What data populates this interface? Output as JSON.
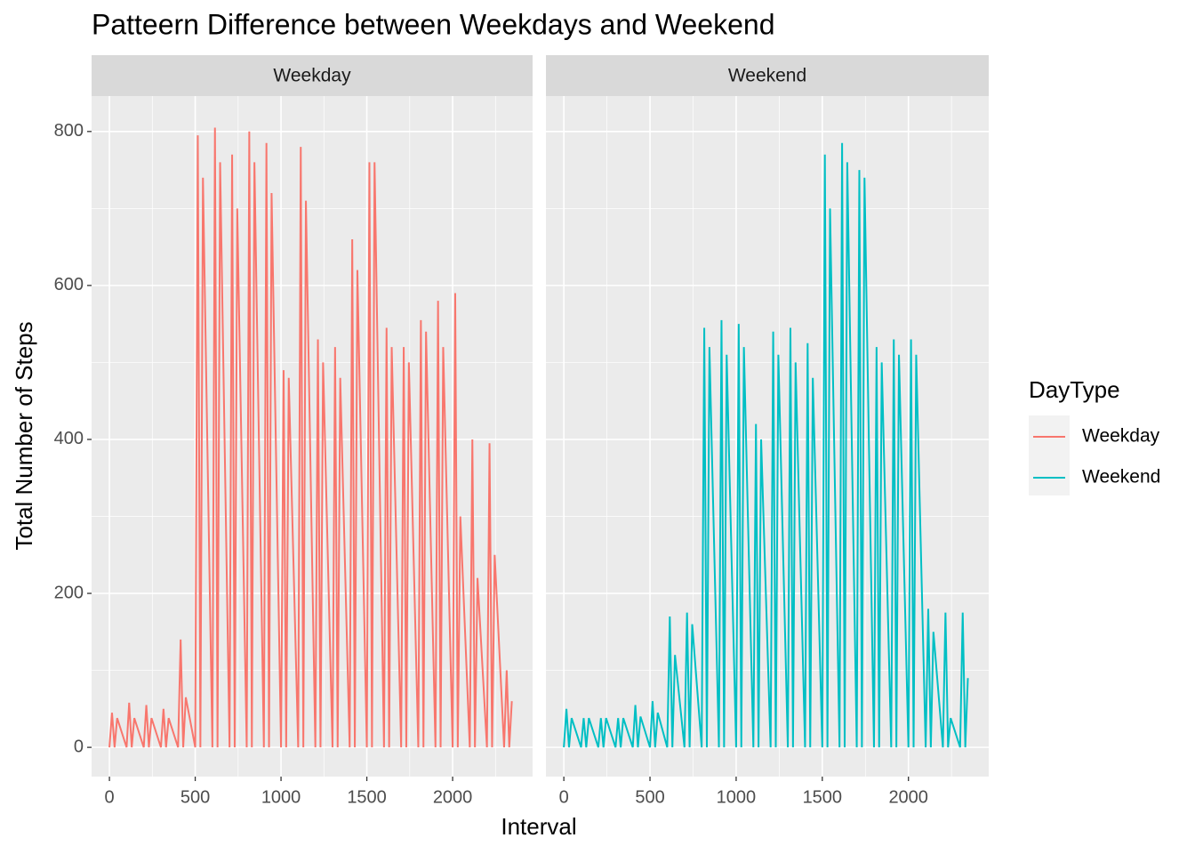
{
  "chart_data": {
    "type": "line",
    "title": "Patteern Difference between Weekdays and Weekend",
    "x_label": "Interval",
    "y_label": "Total Number of Steps",
    "legend_title": "DayType",
    "xlim": [
      -104,
      2466
    ],
    "ylim": [
      -38,
      846
    ],
    "xticks": [
      0,
      500,
      1000,
      1500,
      2000
    ],
    "yticks": [
      0,
      200,
      400,
      600,
      800
    ],
    "xminor": [
      250,
      750,
      1250,
      1750,
      2250
    ],
    "yminor": [
      100,
      300,
      500,
      700
    ],
    "grid": true,
    "legend": "right",
    "panels": [
      {
        "strip": "Weekday",
        "series": [
          {
            "name": "Weekday",
            "color": "#f8766d",
            "x": [
              0,
              15,
              30,
              45,
              100,
              115,
              130,
              145,
              200,
              215,
              230,
              245,
              300,
              315,
              330,
              345,
              400,
              415,
              430,
              445,
              500,
              515,
              530,
              545,
              600,
              615,
              630,
              645,
              700,
              715,
              730,
              745,
              800,
              815,
              830,
              845,
              900,
              915,
              930,
              945,
              1000,
              1015,
              1030,
              1045,
              1100,
              1115,
              1130,
              1145,
              1200,
              1215,
              1230,
              1245,
              1300,
              1315,
              1330,
              1345,
              1400,
              1415,
              1430,
              1445,
              1500,
              1515,
              1530,
              1545,
              1600,
              1615,
              1630,
              1645,
              1700,
              1715,
              1730,
              1745,
              1800,
              1815,
              1830,
              1845,
              1900,
              1915,
              1930,
              1945,
              2000,
              2015,
              2030,
              2045,
              2100,
              2115,
              2130,
              2145,
              2200,
              2215,
              2230,
              2245,
              2300,
              2315,
              2330,
              2345
            ],
            "values": [
              0,
              45,
              0,
              38,
              0,
              58,
              0,
              38,
              0,
              55,
              0,
              38,
              0,
              50,
              0,
              38,
              0,
              140,
              0,
              65,
              0,
              795,
              0,
              740,
              0,
              805,
              0,
              760,
              0,
              770,
              0,
              700,
              0,
              800,
              0,
              760,
              0,
              785,
              0,
              720,
              0,
              490,
              0,
              480,
              0,
              780,
              0,
              710,
              0,
              530,
              0,
              500,
              0,
              520,
              0,
              480,
              0,
              660,
              0,
              620,
              0,
              760,
              0,
              760,
              0,
              545,
              0,
              520,
              0,
              520,
              0,
              500,
              0,
              555,
              0,
              540,
              0,
              580,
              0,
              520,
              0,
              590,
              0,
              300,
              0,
              400,
              0,
              220,
              0,
              395,
              0,
              250,
              0,
              100,
              0,
              60
            ]
          }
        ]
      },
      {
        "strip": "Weekend",
        "series": [
          {
            "name": "Weekend",
            "color": "#00bfc4",
            "x": [
              0,
              15,
              30,
              45,
              100,
              115,
              130,
              145,
              200,
              215,
              230,
              245,
              300,
              315,
              330,
              345,
              400,
              415,
              430,
              445,
              500,
              515,
              530,
              545,
              600,
              615,
              630,
              645,
              700,
              715,
              730,
              745,
              800,
              815,
              830,
              845,
              900,
              915,
              930,
              945,
              1000,
              1015,
              1030,
              1045,
              1100,
              1115,
              1130,
              1145,
              1200,
              1215,
              1230,
              1245,
              1300,
              1315,
              1330,
              1345,
              1400,
              1415,
              1430,
              1445,
              1500,
              1515,
              1530,
              1545,
              1600,
              1615,
              1630,
              1645,
              1700,
              1715,
              1730,
              1745,
              1800,
              1815,
              1830,
              1845,
              1900,
              1915,
              1930,
              1945,
              2000,
              2015,
              2030,
              2045,
              2100,
              2115,
              2130,
              2145,
              2200,
              2215,
              2230,
              2245,
              2300,
              2315,
              2330,
              2345
            ],
            "values": [
              0,
              50,
              0,
              38,
              0,
              38,
              0,
              38,
              0,
              38,
              0,
              38,
              0,
              38,
              0,
              38,
              0,
              55,
              0,
              40,
              0,
              60,
              0,
              45,
              0,
              170,
              0,
              120,
              0,
              175,
              0,
              160,
              0,
              545,
              0,
              520,
              0,
              555,
              0,
              510,
              0,
              550,
              0,
              520,
              0,
              420,
              0,
              400,
              0,
              540,
              0,
              510,
              0,
              545,
              0,
              500,
              0,
              525,
              0,
              480,
              0,
              770,
              0,
              700,
              0,
              785,
              0,
              760,
              0,
              750,
              0,
              740,
              0,
              520,
              0,
              500,
              0,
              530,
              0,
              510,
              0,
              530,
              0,
              510,
              0,
              180,
              0,
              150,
              0,
              175,
              0,
              38,
              0,
              175,
              0,
              90
            ]
          }
        ]
      }
    ]
  }
}
